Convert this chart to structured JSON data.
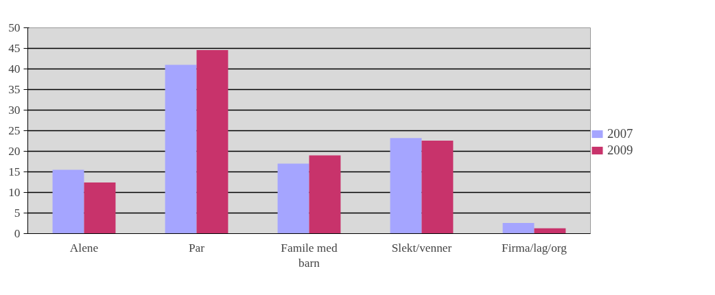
{
  "chart_data": {
    "type": "bar",
    "categories": [
      "Alene",
      "Par",
      "Famile med\nbarn",
      "Slekt/venner",
      "Firma/lag/org"
    ],
    "series": [
      {
        "name": "2007",
        "color": "#a5a5ff",
        "values": [
          15.5,
          41,
          17,
          23.2,
          2.6
        ]
      },
      {
        "name": "2009",
        "color": "#c8336b",
        "values": [
          12.4,
          44.6,
          19,
          22.6,
          1.3
        ]
      }
    ],
    "ylim": [
      0,
      50
    ],
    "yticks": [
      0,
      5,
      10,
      15,
      20,
      25,
      30,
      35,
      40,
      45,
      50
    ],
    "grid": "y",
    "legend": "right"
  }
}
